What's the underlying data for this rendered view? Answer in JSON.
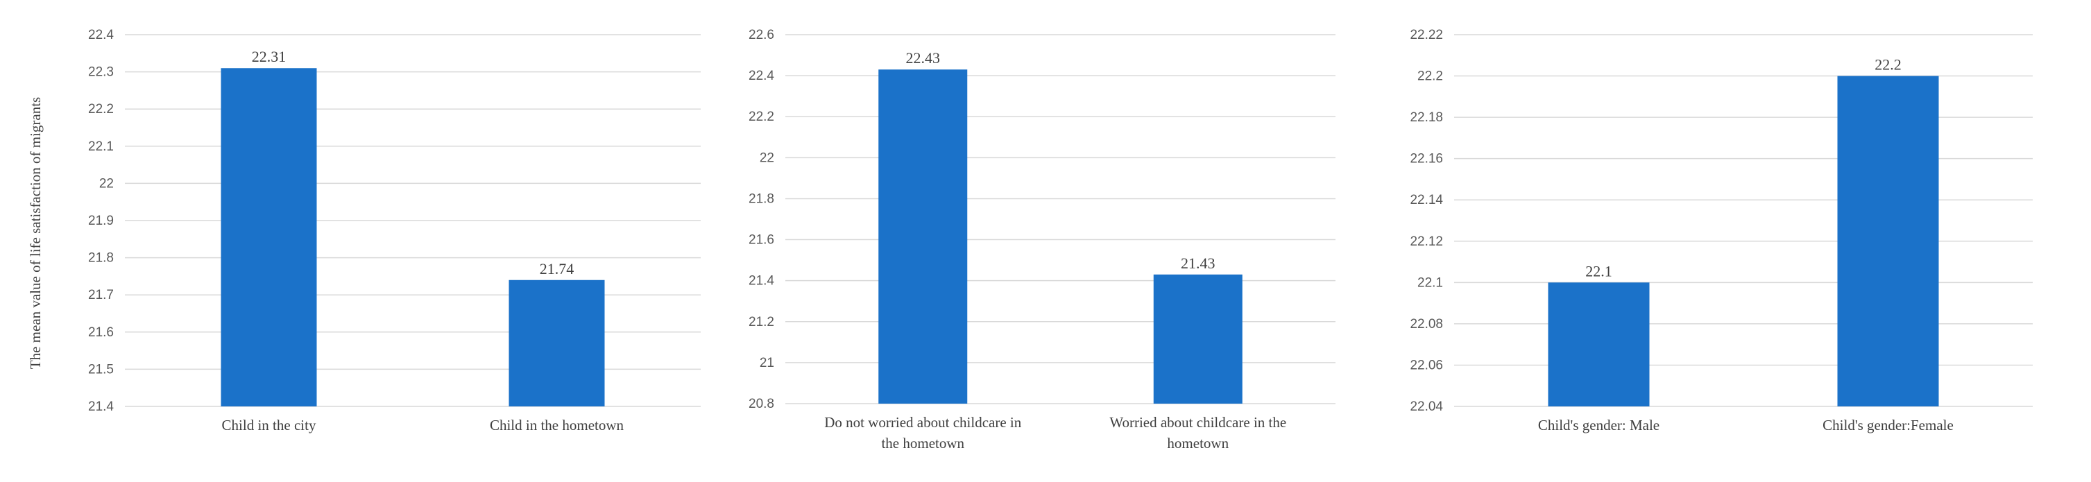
{
  "chart_data": [
    {
      "type": "bar",
      "ylabel": "The mean value of life satisfaction of migrants",
      "categories": [
        "Child in the city",
        "Child in the hometown"
      ],
      "values": [
        22.31,
        21.74
      ],
      "data_labels": [
        "22.31",
        "21.74"
      ],
      "ylim": [
        21.4,
        22.4
      ],
      "yticks": [
        "21.4",
        "21.5",
        "21.6",
        "21.7",
        "21.8",
        "21.9",
        "22",
        "22.1",
        "22.2",
        "22.3",
        "22.4"
      ],
      "grid": true,
      "bar_color": "#1B72C9"
    },
    {
      "type": "bar",
      "categories": [
        "Do not worried about childcare in the hometown",
        "Worried about childcare in the hometown"
      ],
      "values": [
        22.43,
        21.43
      ],
      "data_labels": [
        "22.43",
        "21.43"
      ],
      "ylim": [
        20.8,
        22.6
      ],
      "yticks": [
        "20.8",
        "21",
        "21.2",
        "21.4",
        "21.6",
        "21.8",
        "22",
        "22.2",
        "22.4",
        "22.6"
      ],
      "grid": true,
      "bar_color": "#1B72C9"
    },
    {
      "type": "bar",
      "categories": [
        "Child's gender: Male",
        "Child's gender:Female"
      ],
      "values": [
        22.1,
        22.2
      ],
      "data_labels": [
        "22.1",
        "22.2"
      ],
      "ylim": [
        22.04,
        22.22
      ],
      "yticks": [
        "22.04",
        "22.06",
        "22.08",
        "22.1",
        "22.12",
        "22.14",
        "22.16",
        "22.18",
        "22.2",
        "22.22"
      ],
      "grid": true,
      "bar_color": "#1B72C9"
    }
  ]
}
